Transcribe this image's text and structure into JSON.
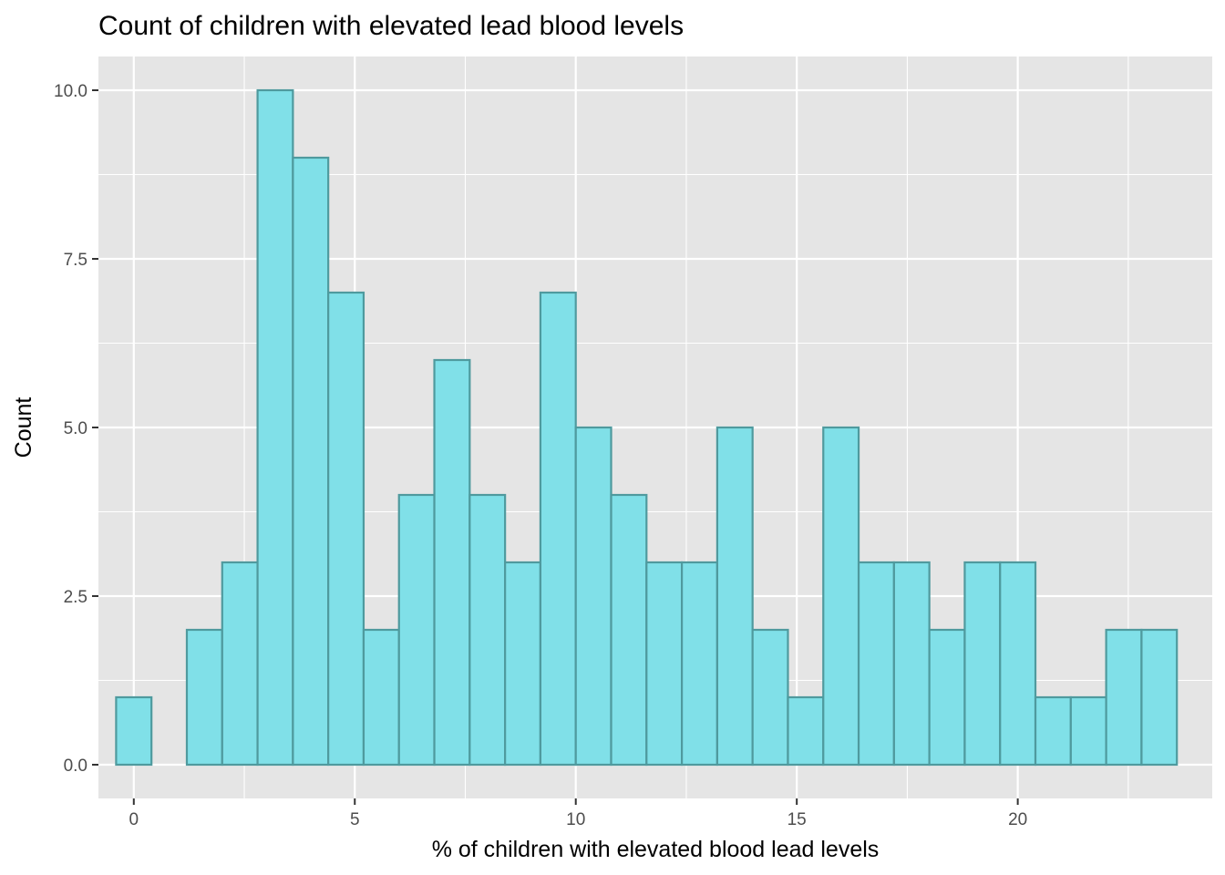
{
  "chart_data": {
    "type": "bar",
    "subtype": "histogram",
    "title": "Count of children with elevated lead blood levels",
    "xlabel": "% of children with elevated blood lead levels",
    "ylabel": "Count",
    "bin_width": 0.8,
    "bins": [
      {
        "x": 0.0,
        "count": 1
      },
      {
        "x": 0.8,
        "count": 0
      },
      {
        "x": 1.6,
        "count": 2
      },
      {
        "x": 2.4,
        "count": 3
      },
      {
        "x": 3.2,
        "count": 10
      },
      {
        "x": 4.0,
        "count": 9
      },
      {
        "x": 4.8,
        "count": 7
      },
      {
        "x": 5.6,
        "count": 2
      },
      {
        "x": 6.4,
        "count": 4
      },
      {
        "x": 7.2,
        "count": 6
      },
      {
        "x": 8.0,
        "count": 4
      },
      {
        "x": 8.8,
        "count": 3
      },
      {
        "x": 9.6,
        "count": 7
      },
      {
        "x": 10.4,
        "count": 5
      },
      {
        "x": 11.2,
        "count": 4
      },
      {
        "x": 12.0,
        "count": 3
      },
      {
        "x": 12.8,
        "count": 3
      },
      {
        "x": 13.6,
        "count": 5
      },
      {
        "x": 14.4,
        "count": 2
      },
      {
        "x": 15.2,
        "count": 1
      },
      {
        "x": 16.0,
        "count": 5
      },
      {
        "x": 16.8,
        "count": 3
      },
      {
        "x": 17.6,
        "count": 3
      },
      {
        "x": 18.4,
        "count": 2
      },
      {
        "x": 19.2,
        "count": 3
      },
      {
        "x": 20.0,
        "count": 3
      },
      {
        "x": 20.8,
        "count": 1
      },
      {
        "x": 21.6,
        "count": 1
      },
      {
        "x": 22.4,
        "count": 2
      },
      {
        "x": 23.2,
        "count": 2
      }
    ],
    "xlim": [
      -0.8,
      24.4
    ],
    "ylim": [
      -0.5,
      10.5
    ],
    "x_ticks": [
      0,
      5,
      10,
      15,
      20
    ],
    "x_tick_labels": [
      "0",
      "5",
      "10",
      "15",
      "20"
    ],
    "y_ticks": [
      0,
      2.5,
      5,
      7.5,
      10
    ],
    "y_tick_labels": [
      "0.0",
      "2.5",
      "5.0",
      "7.5",
      "10.0"
    ],
    "grid": true,
    "legend": "none",
    "colors": {
      "bar_fill": "#80e0e8",
      "bar_outline": "#4f9a9e",
      "panel_background": "#e5e5e5",
      "grid_line": "#ffffff"
    }
  }
}
